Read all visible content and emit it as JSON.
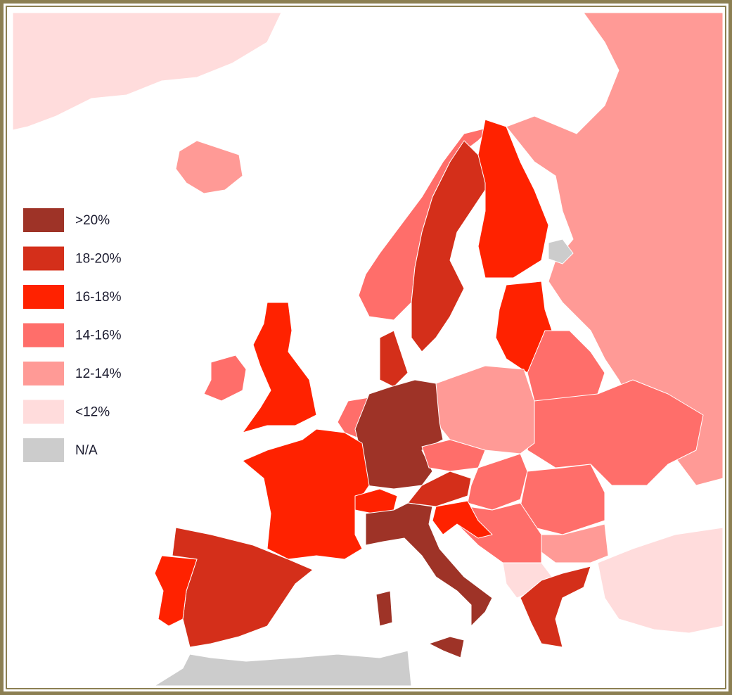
{
  "legend": {
    "items": [
      {
        "label": ">20%",
        "color": "#9e3327"
      },
      {
        "label": "18-20%",
        "color": "#d42f1a"
      },
      {
        "label": "16-18%",
        "color": "#ff2200"
      },
      {
        "label": "14-16%",
        "color": "#ff6e6a"
      },
      {
        "label": "12-14%",
        "color": "#ff9a96"
      },
      {
        "label": "<12%",
        "color": "#ffdcdc"
      },
      {
        "label": "N/A",
        "color": "#cccccc"
      }
    ]
  }
}
